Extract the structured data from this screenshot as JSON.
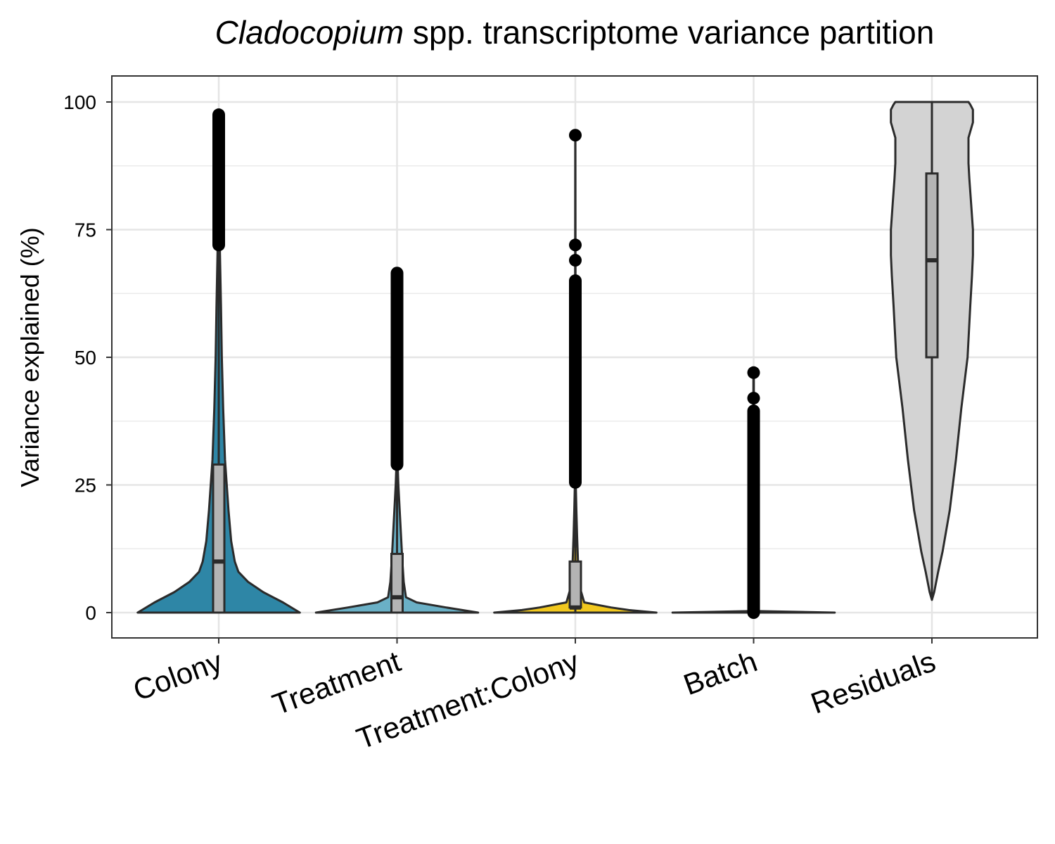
{
  "chart_data": {
    "type": "violin",
    "title_italic": "Cladocopium",
    "title_rest": " spp. transcriptome variance partition",
    "xlabel": "",
    "ylabel": "Variance explained (%)",
    "ylim": [
      -5,
      105
    ],
    "yticks": [
      0,
      25,
      50,
      75,
      100
    ],
    "yticks_labels": [
      "0",
      "25",
      "50",
      "75",
      "100"
    ],
    "grid": true,
    "categories": [
      "Colony",
      "Treatment",
      "Treatment:Colony",
      "Batch",
      "Residuals"
    ],
    "colors": {
      "Colony": "#2e86a6",
      "Treatment": "#6ab0c6",
      "Treatment:Colony": "#f2c81e",
      "Batch": "#6ab0c6",
      "Residuals": "#d3d3d3"
    },
    "box_fill": "#b4b4b4",
    "boxplots": [
      {
        "name": "Colony",
        "whisker_low": 0,
        "q1": 0,
        "median": 10,
        "q3": 29,
        "whisker_high": 72,
        "outliers_range": [
          72,
          97.5
        ]
      },
      {
        "name": "Treatment",
        "whisker_low": 0,
        "q1": 0,
        "median": 3,
        "q3": 11.5,
        "whisker_high": 29,
        "outliers_range": [
          29,
          66.5
        ]
      },
      {
        "name": "Treatment:Colony",
        "whisker_low": 0,
        "q1": 1,
        "median": 1,
        "q3": 10,
        "whisker_high": 25.5,
        "outliers_range": [
          25.5,
          65
        ],
        "outliers_extra": [
          69,
          72,
          93.5
        ]
      },
      {
        "name": "Batch",
        "whisker_low": 0,
        "q1": 0,
        "median": 0,
        "q3": 0,
        "whisker_high": 0,
        "outliers_range": [
          0,
          39.5
        ],
        "outliers_extra": [
          42,
          47
        ]
      },
      {
        "name": "Residuals",
        "whisker_low": 2.5,
        "q1": 50,
        "median": 69,
        "q3": 86,
        "whisker_high": 100,
        "outliers_range": null
      }
    ],
    "violin_profiles": [
      {
        "name": "Colony",
        "halfwidth": [
          [
            0,
            0.91
          ],
          [
            2,
            0.72
          ],
          [
            4,
            0.5
          ],
          [
            6,
            0.33
          ],
          [
            8,
            0.22
          ],
          [
            10,
            0.18
          ],
          [
            14,
            0.14
          ],
          [
            20,
            0.11
          ],
          [
            25,
            0.09
          ],
          [
            30,
            0.07
          ],
          [
            40,
            0.05
          ],
          [
            50,
            0.035
          ],
          [
            60,
            0.025
          ],
          [
            72,
            0.012
          ],
          [
            80,
            0.01
          ],
          [
            90,
            0.008
          ],
          [
            97.5,
            0.004
          ]
        ]
      },
      {
        "name": "Treatment",
        "halfwidth": [
          [
            0,
            0.91
          ],
          [
            1,
            0.55
          ],
          [
            2,
            0.22
          ],
          [
            3,
            0.1
          ],
          [
            6,
            0.075
          ],
          [
            10,
            0.06
          ],
          [
            15,
            0.045
          ],
          [
            20,
            0.03
          ],
          [
            25,
            0.015
          ],
          [
            30,
            0.005
          ],
          [
            40,
            0.004
          ],
          [
            50,
            0.003
          ],
          [
            60,
            0.002
          ],
          [
            66.5,
            0.001
          ]
        ]
      },
      {
        "name": "Treatment:Colony",
        "halfwidth": [
          [
            0,
            0.91
          ],
          [
            0.5,
            0.6
          ],
          [
            1,
            0.4
          ],
          [
            2,
            0.1
          ],
          [
            5,
            0.05
          ],
          [
            10,
            0.03
          ],
          [
            15,
            0.02
          ],
          [
            20,
            0.012
          ],
          [
            26,
            0.004
          ],
          [
            40,
            0.003
          ],
          [
            60,
            0.002
          ],
          [
            93.5,
            0.001
          ]
        ]
      },
      {
        "name": "Batch",
        "halfwidth": [
          [
            0,
            0.91
          ],
          [
            0.3,
            0.005
          ],
          [
            47,
            0.002
          ]
        ]
      },
      {
        "name": "Residuals",
        "halfwidth": [
          [
            2.5,
            0
          ],
          [
            4,
            0.025
          ],
          [
            8,
            0.07
          ],
          [
            12,
            0.12
          ],
          [
            20,
            0.2
          ],
          [
            30,
            0.27
          ],
          [
            40,
            0.33
          ],
          [
            50,
            0.4
          ],
          [
            60,
            0.43
          ],
          [
            66,
            0.45
          ],
          [
            70,
            0.46
          ],
          [
            75,
            0.46
          ],
          [
            80,
            0.44
          ],
          [
            85,
            0.42
          ],
          [
            88,
            0.41
          ],
          [
            93,
            0.41
          ],
          [
            96,
            0.46
          ],
          [
            98.5,
            0.46
          ],
          [
            99.5,
            0.43
          ],
          [
            100,
            0.41
          ]
        ]
      }
    ]
  }
}
